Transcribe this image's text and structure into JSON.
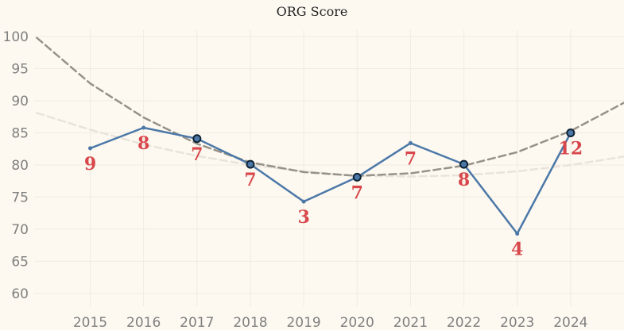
{
  "chart_data": {
    "type": "line",
    "title": "ORG Score",
    "xlabel": "",
    "ylabel": "",
    "x": [
      "2015",
      "2016",
      "2017",
      "2018",
      "2019",
      "2020",
      "2021",
      "2022",
      "2023",
      "2024"
    ],
    "y_ticks": [
      "60",
      "65",
      "70",
      "75",
      "80",
      "85",
      "90",
      "95",
      "100"
    ],
    "ylim": [
      58,
      101
    ],
    "xlim": [
      2013.95,
      2025
    ],
    "grid": true,
    "series": [
      {
        "values": [
          82.6,
          85.8,
          84.1,
          80.1,
          74.3,
          78.1,
          83.4,
          80.1,
          69.3,
          85.0
        ],
        "highlighted": [
          false,
          false,
          true,
          true,
          false,
          true,
          false,
          true,
          false,
          true
        ],
        "point_labels": [
          "9",
          "8",
          "7",
          "7",
          "3",
          "7",
          "7",
          "8",
          "4",
          "12"
        ],
        "color": "#4c78a8"
      }
    ],
    "trend_lines": [
      {
        "style": "dashed",
        "color": "#979288",
        "x": [
          2014,
          2015,
          2016,
          2017,
          2018,
          2019,
          2020,
          2021,
          2022,
          2023,
          2024,
          2025
        ],
        "values": [
          99.8,
          92.7,
          87.4,
          83.3,
          80.4,
          78.9,
          78.3,
          78.7,
          79.9,
          82.0,
          85.3,
          89.7
        ]
      },
      {
        "style": "dashed",
        "color": "#e9e4da",
        "x": [
          2014,
          2015,
          2016,
          2017,
          2018,
          2019,
          2020,
          2021,
          2022,
          2023,
          2024,
          2025
        ],
        "values": [
          88.1,
          85.5,
          83.2,
          81.4,
          80.0,
          79.0,
          78.3,
          78.2,
          78.4,
          79.0,
          80.0,
          81.3
        ]
      }
    ],
    "label_color": "#d8474b",
    "highlight_marker_color": "#0d2233"
  }
}
